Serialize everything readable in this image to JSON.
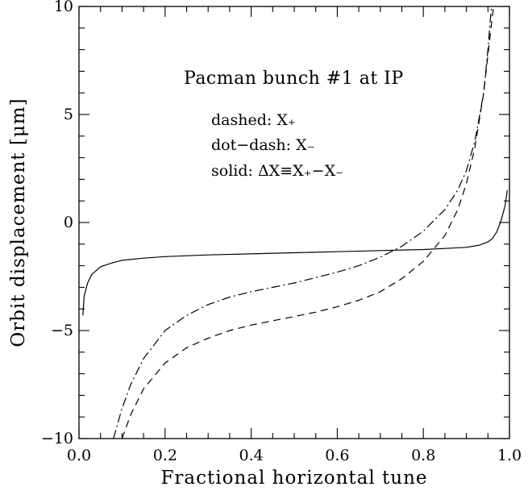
{
  "chart_data": {
    "type": "line",
    "xlabel": "Fractional horizontal tune",
    "ylabel": "Orbit displacement [μm]",
    "xlim": [
      0.0,
      1.0
    ],
    "ylim": [
      -10,
      10
    ],
    "x_ticks": [
      0.0,
      0.2,
      0.4,
      0.6,
      0.8,
      1.0
    ],
    "x_tick_labels": [
      "0.0",
      "0.2",
      "0.4",
      "0.6",
      "0.8",
      "1.0"
    ],
    "y_ticks": [
      -10,
      -5,
      0,
      5,
      10
    ],
    "y_tick_labels": [
      "−10",
      "−5",
      "0",
      "5",
      "10"
    ],
    "grid": false,
    "annotations": {
      "title": "Pacman bunch #1 at IP",
      "line1": "dashed: X₊",
      "line2": "dot−dash: X₋",
      "line3": "solid: ΔX≡X₊−X₋"
    },
    "series": [
      {
        "style": "dashed",
        "points": [
          [
            0.1,
            -10
          ],
          [
            0.12,
            -8.9
          ],
          [
            0.15,
            -7.7
          ],
          [
            0.2,
            -6.5
          ],
          [
            0.25,
            -5.8
          ],
          [
            0.3,
            -5.35
          ],
          [
            0.35,
            -5.0
          ],
          [
            0.4,
            -4.75
          ],
          [
            0.45,
            -4.55
          ],
          [
            0.5,
            -4.35
          ],
          [
            0.55,
            -4.15
          ],
          [
            0.6,
            -3.9
          ],
          [
            0.65,
            -3.6
          ],
          [
            0.7,
            -3.2
          ],
          [
            0.75,
            -2.6
          ],
          [
            0.8,
            -1.8
          ],
          [
            0.85,
            -0.6
          ],
          [
            0.88,
            0.6
          ],
          [
            0.9,
            1.8
          ],
          [
            0.92,
            3.5
          ],
          [
            0.94,
            6.0
          ],
          [
            0.96,
            9.5
          ],
          [
            0.963,
            10
          ]
        ]
      },
      {
        "style": "dot-dash",
        "points": [
          [
            0.08,
            -10
          ],
          [
            0.1,
            -8.6
          ],
          [
            0.12,
            -7.5
          ],
          [
            0.15,
            -6.3
          ],
          [
            0.2,
            -5.0
          ],
          [
            0.25,
            -4.3
          ],
          [
            0.3,
            -3.8
          ],
          [
            0.35,
            -3.45
          ],
          [
            0.4,
            -3.2
          ],
          [
            0.45,
            -3.0
          ],
          [
            0.5,
            -2.8
          ],
          [
            0.55,
            -2.55
          ],
          [
            0.6,
            -2.3
          ],
          [
            0.65,
            -2.0
          ],
          [
            0.7,
            -1.6
          ],
          [
            0.75,
            -1.1
          ],
          [
            0.8,
            -0.4
          ],
          [
            0.85,
            0.6
          ],
          [
            0.88,
            1.5
          ],
          [
            0.9,
            2.4
          ],
          [
            0.92,
            3.8
          ],
          [
            0.94,
            6.0
          ],
          [
            0.95,
            8.0
          ],
          [
            0.958,
            10
          ]
        ]
      },
      {
        "style": "solid",
        "points": [
          [
            0.009,
            -4.3
          ],
          [
            0.012,
            -3.4
          ],
          [
            0.02,
            -2.8
          ],
          [
            0.03,
            -2.4
          ],
          [
            0.05,
            -2.05
          ],
          [
            0.08,
            -1.85
          ],
          [
            0.1,
            -1.75
          ],
          [
            0.15,
            -1.65
          ],
          [
            0.2,
            -1.58
          ],
          [
            0.3,
            -1.5
          ],
          [
            0.4,
            -1.45
          ],
          [
            0.5,
            -1.4
          ],
          [
            0.6,
            -1.35
          ],
          [
            0.7,
            -1.3
          ],
          [
            0.8,
            -1.25
          ],
          [
            0.85,
            -1.2
          ],
          [
            0.9,
            -1.15
          ],
          [
            0.93,
            -1.05
          ],
          [
            0.95,
            -0.9
          ],
          [
            0.96,
            -0.75
          ],
          [
            0.97,
            -0.45
          ],
          [
            0.98,
            0.05
          ],
          [
            0.99,
            0.8
          ],
          [
            0.995,
            1.5
          ]
        ]
      }
    ]
  }
}
